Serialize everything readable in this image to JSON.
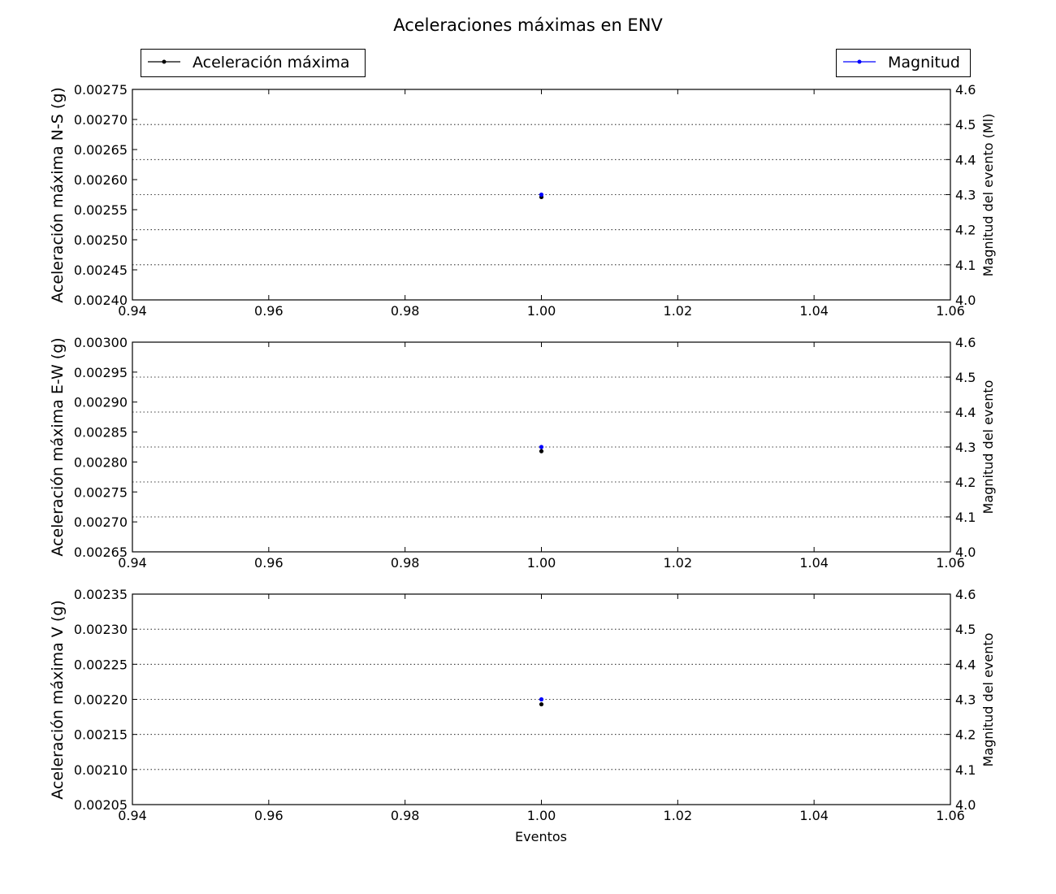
{
  "title": "Aceleraciones máximas en ENV",
  "legend": {
    "left": {
      "label": "Aceleración máxima",
      "color": "#000000"
    },
    "right": {
      "label": "Magnitud",
      "color": "#0000ff"
    }
  },
  "chart_data": {
    "type": "scatter",
    "x_label": "Eventos",
    "x_range": [
      0.94,
      1.06
    ],
    "x_ticks": [
      "0.94",
      "0.96",
      "0.98",
      "1.00",
      "1.02",
      "1.04",
      "1.06"
    ],
    "secondary_y_range": [
      4.0,
      4.6
    ],
    "secondary_y_ticks": [
      "4.0",
      "4.1",
      "4.2",
      "4.3",
      "4.4",
      "4.5",
      "4.6"
    ],
    "grid": "horizontal dotted (secondary axis)",
    "panels": [
      {
        "ylabel": "Aceleración máxima N-S (g)",
        "y2label": "Magnitud del evento (Ml)",
        "ylim": [
          0.0024,
          0.00275
        ],
        "y_ticks": [
          "0.00275",
          "0.00270",
          "0.00265",
          "0.00260",
          "0.00255",
          "0.00250",
          "0.00245",
          "0.00240"
        ],
        "series": [
          {
            "name": "Aceleración máxima",
            "axis": "left",
            "color": "#000000",
            "x": [
              1.0
            ],
            "y": [
              0.002571
            ]
          },
          {
            "name": "Magnitud",
            "axis": "right",
            "color": "#0000ff",
            "x": [
              1.0
            ],
            "y": [
              4.3
            ]
          }
        ]
      },
      {
        "ylabel": "Aceleración máxima E-W (g)",
        "y2label": "Magnitud del evento",
        "ylim": [
          0.00265,
          0.003
        ],
        "y_ticks": [
          "0.00300",
          "0.00295",
          "0.00290",
          "0.00285",
          "0.00280",
          "0.00275",
          "0.00270",
          "0.00265"
        ],
        "series": [
          {
            "name": "Aceleración máxima",
            "axis": "left",
            "color": "#000000",
            "x": [
              1.0
            ],
            "y": [
              0.002818
            ]
          },
          {
            "name": "Magnitud",
            "axis": "right",
            "color": "#0000ff",
            "x": [
              1.0
            ],
            "y": [
              4.3
            ]
          }
        ]
      },
      {
        "ylabel": "Aceleración máxima V (g)",
        "y2label": "Magnitud del evento",
        "ylim": [
          0.00205,
          0.00235
        ],
        "y_ticks": [
          "0.00235",
          "0.00230",
          "0.00225",
          "0.00220",
          "0.00215",
          "0.00210",
          "0.00205"
        ],
        "series": [
          {
            "name": "Aceleración máxima",
            "axis": "left",
            "color": "#000000",
            "x": [
              1.0
            ],
            "y": [
              0.002193
            ]
          },
          {
            "name": "Magnitud",
            "axis": "right",
            "color": "#0000ff",
            "x": [
              1.0
            ],
            "y": [
              4.3
            ]
          }
        ]
      }
    ]
  }
}
